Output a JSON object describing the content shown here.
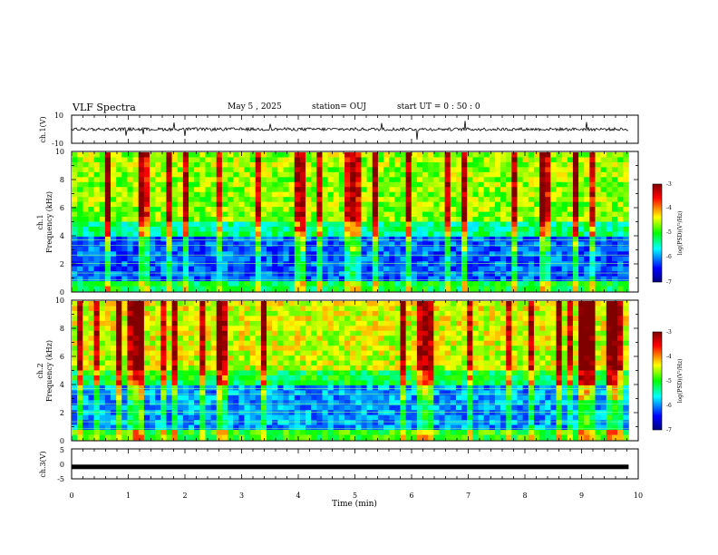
{
  "header": {
    "title": "VLF Spectra",
    "date": "May 5 , 2025",
    "station": "station= OUJ",
    "start": "start UT = 0 : 50 : 0"
  },
  "colorbar": {
    "label": "log(PSD)(V²/Hz)",
    "min": -7,
    "max": -3,
    "tick_labels": [
      "-3",
      "-4",
      "-5",
      "-6",
      "-7"
    ],
    "colors": [
      "#000080",
      "#0000ff",
      "#00ffff",
      "#00ff00",
      "#ffff00",
      "#ff0000",
      "#800000"
    ]
  },
  "chart_data": [
    {
      "type": "line",
      "name": "ch.1 waveform",
      "ylabel": "ch.1(V)",
      "ylim": [
        -10,
        10
      ],
      "y_tick_labels": [
        "10",
        "-10"
      ],
      "baseline": 0,
      "color": "#000000"
    },
    {
      "type": "heatmap",
      "name": "ch.1 spectrogram",
      "ylabel": "ch.1",
      "ylabel2": "Frequency (kHz)",
      "ylim": [
        0,
        10
      ],
      "y_tick_labels": [
        "0",
        "2",
        "4",
        "6",
        "8",
        "10"
      ],
      "xlim": [
        0,
        10
      ]
    },
    {
      "type": "heatmap",
      "name": "ch.2 spectrogram",
      "ylabel": "ch.2",
      "ylabel2": "Frequency (kHz)",
      "ylim": [
        0,
        10
      ],
      "y_tick_labels": [
        "0",
        "2",
        "4",
        "6",
        "8",
        "10"
      ],
      "xlim": [
        0,
        10
      ]
    },
    {
      "type": "line",
      "name": "ch.3 waveform",
      "ylabel": "ch.3(V)",
      "ylim": [
        -5,
        5
      ],
      "y_tick_labels": [
        "5",
        "0",
        "-5"
      ],
      "baseline": -1,
      "color": "#000000"
    }
  ],
  "xaxis": {
    "label": "Time (min)",
    "range": [
      0,
      10
    ],
    "tick_labels": [
      "0",
      "1",
      "2",
      "3",
      "4",
      "5",
      "6",
      "7",
      "8",
      "9",
      "10"
    ],
    "data_end": 9.83
  }
}
